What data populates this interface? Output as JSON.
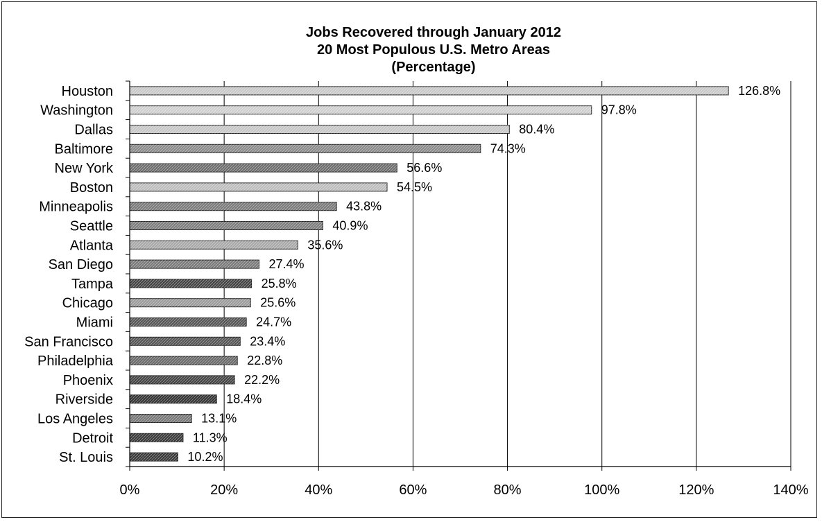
{
  "chart_data": {
    "type": "bar",
    "orientation": "horizontal",
    "title": "Jobs Recovered through January 2012",
    "subtitle": "20 Most Populous U.S. Metro Areas",
    "subtitle2": "(Percentage)",
    "categories": [
      "Houston",
      "Washington",
      "Dallas",
      "Baltimore",
      "New York",
      "Boston",
      "Minneapolis",
      "Seattle",
      "Atlanta",
      "San Diego",
      "Tampa",
      "Chicago",
      "Miami",
      "San Francisco",
      "Philadelphia",
      "Phoenix",
      "Riverside",
      "Los Angeles",
      "Detroit",
      "St. Louis"
    ],
    "values": [
      126.8,
      97.8,
      80.4,
      74.3,
      56.6,
      54.5,
      43.8,
      40.9,
      35.6,
      27.4,
      25.8,
      25.6,
      24.7,
      23.4,
      22.8,
      22.2,
      18.4,
      13.1,
      11.3,
      10.2
    ],
    "data_labels": [
      "126.8%",
      "97.8%",
      "80.4%",
      "74.3%",
      "56.6%",
      "54.5%",
      "43.8%",
      "40.9%",
      "35.6%",
      "27.4%",
      "25.8%",
      "25.6%",
      "24.7%",
      "23.4%",
      "22.8%",
      "22.2%",
      "18.4%",
      "13.1%",
      "11.3%",
      "10.2%"
    ],
    "xlim": [
      0,
      140
    ],
    "xticks": [
      0,
      20,
      40,
      60,
      80,
      100,
      120,
      140
    ],
    "xtick_labels": [
      "0%",
      "20%",
      "40%",
      "60%",
      "80%",
      "100%",
      "120%",
      "140%"
    ],
    "grid": "vertical",
    "bar_colors": [
      "#c8c8c8",
      "#cfcfcf",
      "#c6c6c6",
      "#8a8a8a",
      "#6e6e6e",
      "#bdbdbd",
      "#7a7a7a",
      "#7d7d7d",
      "#a8a8a8",
      "#7a7a7a",
      "#444444",
      "#9a9a9a",
      "#555555",
      "#555555",
      "#6a6a6a",
      "#444444",
      "#333333",
      "#777777",
      "#3a3a3a",
      "#3a3a3a"
    ]
  }
}
